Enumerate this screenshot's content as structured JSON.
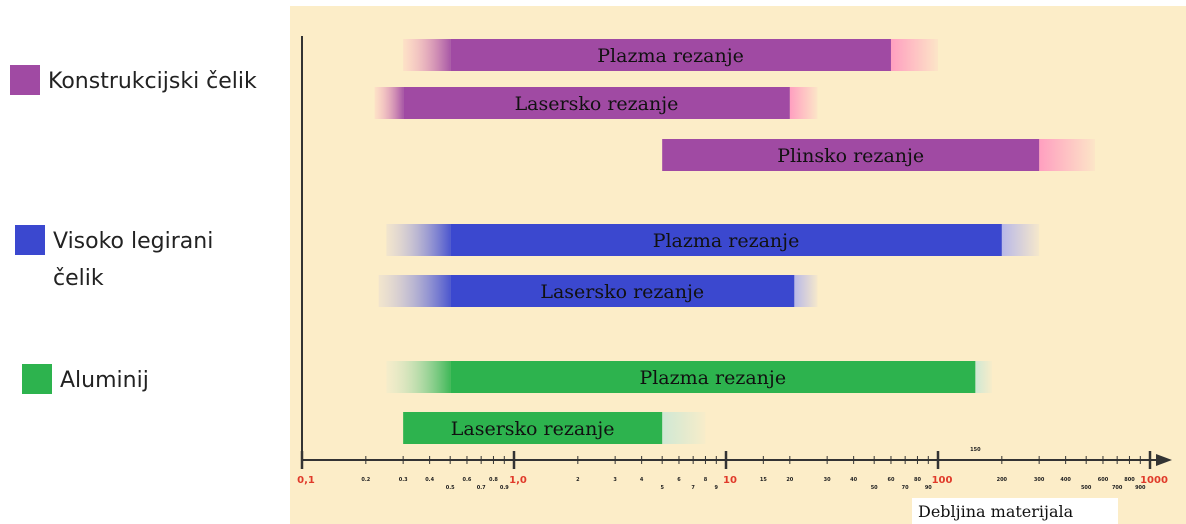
{
  "chart_data": {
    "type": "bar",
    "xscale": "log",
    "xlim": [
      0.1,
      1000
    ],
    "xlabel": "Debljina materijala",
    "ylabel": "",
    "title": "",
    "grid": false,
    "legend_position": "left",
    "x_ticks_major": [
      {
        "value": 0.1,
        "label": "0,1"
      },
      {
        "value": 1,
        "label": "1,0"
      },
      {
        "value": 10,
        "label": "10"
      },
      {
        "value": 100,
        "label": "100"
      },
      {
        "value": 1000,
        "label": "1000"
      }
    ],
    "x_ticks_minor_upper": [
      {
        "value": 0.2,
        "label": "0.2"
      },
      {
        "value": 0.3,
        "label": "0.3"
      },
      {
        "value": 0.4,
        "label": "0.4"
      },
      {
        "value": 0.6,
        "label": "0.6"
      },
      {
        "value": 0.8,
        "label": "0.8"
      },
      {
        "value": 2,
        "label": "2"
      },
      {
        "value": 3,
        "label": "3"
      },
      {
        "value": 4,
        "label": "4"
      },
      {
        "value": 6,
        "label": "6"
      },
      {
        "value": 8,
        "label": "8"
      },
      {
        "value": 15,
        "label": "15"
      },
      {
        "value": 20,
        "label": "20"
      },
      {
        "value": 30,
        "label": "30"
      },
      {
        "value": 40,
        "label": "40"
      },
      {
        "value": 60,
        "label": "60"
      },
      {
        "value": 80,
        "label": "80"
      },
      {
        "value": 200,
        "label": "200"
      },
      {
        "value": 300,
        "label": "300"
      },
      {
        "value": 400,
        "label": "400"
      },
      {
        "value": 600,
        "label": "600"
      },
      {
        "value": 800,
        "label": "800"
      }
    ],
    "x_ticks_minor_lower": [
      {
        "value": 0.5,
        "label": "0.5"
      },
      {
        "value": 0.7,
        "label": "0.7"
      },
      {
        "value": 0.9,
        "label": "0.9"
      },
      {
        "value": 5,
        "label": "5"
      },
      {
        "value": 7,
        "label": "7"
      },
      {
        "value": 9,
        "label": "9"
      },
      {
        "value": 50,
        "label": "50"
      },
      {
        "value": 70,
        "label": "70"
      },
      {
        "value": 90,
        "label": "90"
      },
      {
        "value": 500,
        "label": "500"
      },
      {
        "value": 700,
        "label": "700"
      },
      {
        "value": 900,
        "label": "900"
      }
    ],
    "x_ticks_extra": [
      {
        "value": 150,
        "label": "150"
      }
    ],
    "groups": [
      {
        "name": "Konstrukcijski čelik",
        "name_lines": [
          "Konstrukcijski čelik"
        ],
        "color": "#a04aa3",
        "fade_color": "#ff9fc0",
        "bars": [
          {
            "label": "Plazma rezanje",
            "core": [
              0.5,
              60
            ],
            "extent": [
              0.3,
              100
            ]
          },
          {
            "label": "Lasersko rezanje",
            "core": [
              0.3,
              20
            ],
            "extent": [
              0.22,
              27
            ]
          },
          {
            "label": "Plinsko rezanje",
            "core": [
              5,
              300
            ],
            "extent": [
              5,
              550
            ]
          }
        ]
      },
      {
        "name": "Visoko legirani čelik",
        "name_lines": [
          "Visoko legirani",
          "čelik"
        ],
        "color": "#3b48cf",
        "fade_color": "#b8b8e8",
        "bars": [
          {
            "label": "Plazma rezanje",
            "core": [
              0.5,
              200
            ],
            "extent": [
              0.25,
              300
            ]
          },
          {
            "label": "Lasersko rezanje",
            "core": [
              0.5,
              21
            ],
            "extent": [
              0.23,
              27
            ]
          }
        ]
      },
      {
        "name": "Aluminij",
        "name_lines": [
          "Aluminij"
        ],
        "color": "#2db34e",
        "fade_color": "#cfe8d4",
        "bars": [
          {
            "label": "Plazma rezanje",
            "core": [
              0.5,
              150
            ],
            "extent": [
              0.25,
              180
            ]
          },
          {
            "label": "Lasersko rezanje",
            "core": [
              0.3,
              5
            ],
            "extent": [
              0.3,
              8
            ]
          }
        ]
      }
    ]
  },
  "colors": {
    "plot_background": "#fcedc8",
    "axis": "#333333"
  }
}
